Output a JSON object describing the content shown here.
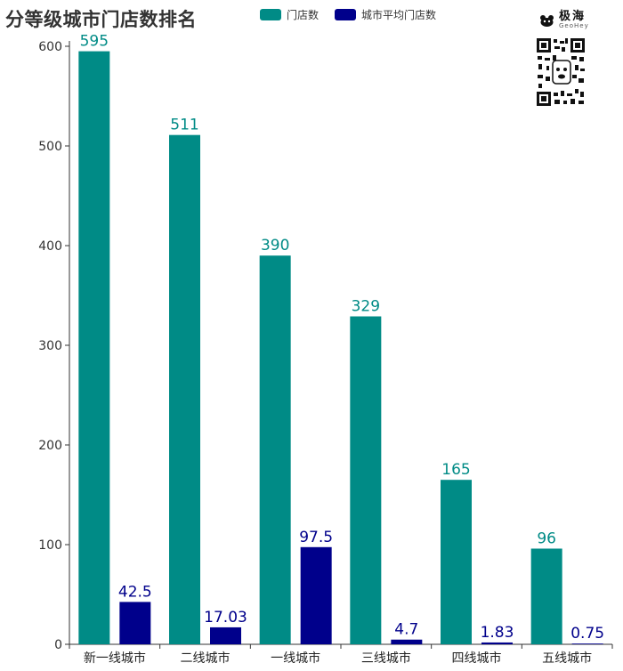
{
  "title": "分等级城市门店数排名",
  "legend": {
    "items": [
      {
        "label": "门店数",
        "color": "#008b86"
      },
      {
        "label": "城市平均门店数",
        "color": "#00008b"
      }
    ]
  },
  "brand": {
    "name": "极海",
    "sub": "GeoHey"
  },
  "chart_data": {
    "type": "bar",
    "categories": [
      "新一线城市",
      "二线城市",
      "一线城市",
      "三线城市",
      "四线城市",
      "五线城市"
    ],
    "series": [
      {
        "name": "门店数",
        "color": "#008b86",
        "values": [
          595,
          511,
          390,
          329,
          165,
          96
        ],
        "labels": [
          "595",
          "511",
          "390",
          "329",
          "165",
          "96"
        ]
      },
      {
        "name": "城市平均门店数",
        "color": "#00008b",
        "values": [
          42.5,
          17.03,
          97.5,
          4.7,
          1.83,
          0.75
        ],
        "labels": [
          "42.5",
          "17.03",
          "97.5",
          "4.7",
          "1.83",
          "0.75"
        ]
      }
    ],
    "ylim": [
      0,
      600
    ],
    "yticks": [
      0,
      100,
      200,
      300,
      400,
      500,
      600
    ],
    "xlabel": "",
    "ylabel": "",
    "grid": false,
    "legend_position": "top-center"
  }
}
